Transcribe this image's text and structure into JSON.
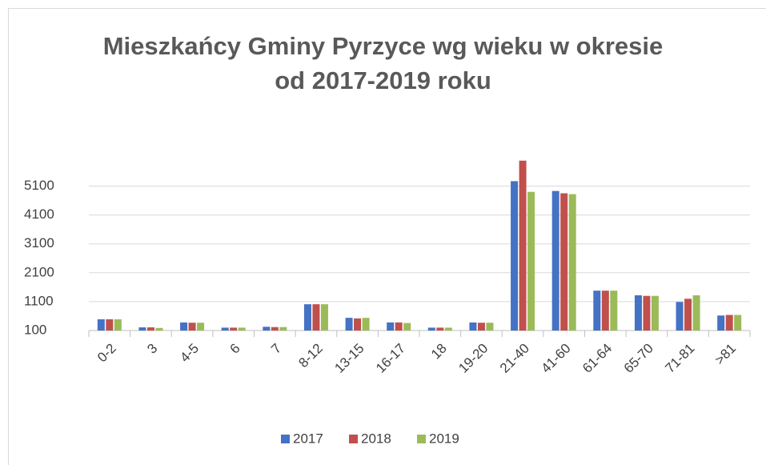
{
  "chart_data": {
    "type": "bar",
    "title": "Mieszkańcy Gminy Pyrzyce wg wieku w okresie\nod 2017-2019 roku",
    "categories": [
      "0-2",
      "3",
      "4-5",
      "6",
      "7",
      "8-12",
      "13-15",
      "16-17",
      "18",
      "19-20",
      "21-40",
      "41-60",
      "61-64",
      "65-70",
      "71-81",
      ">81"
    ],
    "series": [
      {
        "name": "2017",
        "color": "#4472c4",
        "values": [
          490,
          210,
          380,
          200,
          230,
          1010,
          540,
          380,
          200,
          380,
          5270,
          4930,
          1480,
          1320,
          1090,
          620
        ]
      },
      {
        "name": "2018",
        "color": "#c0504d",
        "values": [
          490,
          210,
          370,
          200,
          220,
          1010,
          520,
          380,
          200,
          370,
          5980,
          4850,
          1480,
          1300,
          1200,
          640
        ]
      },
      {
        "name": "2019",
        "color": "#9bbb59",
        "values": [
          490,
          190,
          370,
          200,
          220,
          1010,
          540,
          360,
          200,
          370,
          4900,
          4820,
          1480,
          1300,
          1320,
          640
        ]
      }
    ],
    "ylim": [
      100,
      6000
    ],
    "yticks": [
      100,
      1100,
      2100,
      3100,
      4100,
      5100
    ],
    "grid": true,
    "legend": "bottom"
  }
}
